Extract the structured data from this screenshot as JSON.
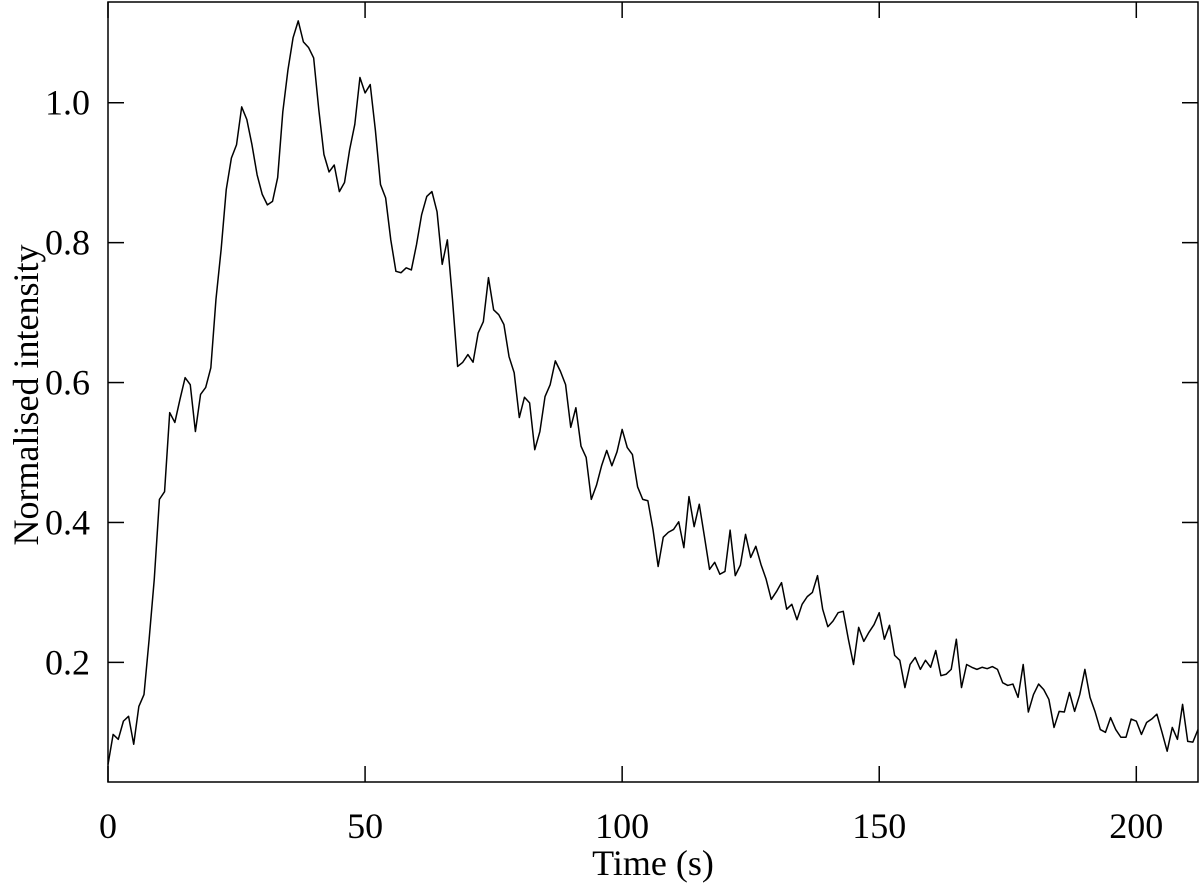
{
  "chart_data": {
    "type": "line",
    "x_label": "Time (s)",
    "y_label": "Normalised intensity",
    "x": [
      0,
      1,
      2,
      3,
      4,
      5,
      6,
      7,
      8,
      9,
      10,
      11,
      12,
      13,
      14,
      15,
      16,
      17,
      18,
      19,
      20,
      21,
      22,
      23,
      24,
      25,
      26,
      27,
      28,
      29,
      30,
      31,
      32,
      33,
      34,
      35,
      36,
      37,
      38,
      39,
      40,
      41,
      42,
      43,
      44,
      45,
      46,
      47,
      48,
      49,
      50,
      51,
      52,
      53,
      54,
      55,
      56,
      57,
      58,
      59,
      60,
      61,
      62,
      63,
      64,
      65,
      66,
      67,
      68,
      69,
      70,
      71,
      72,
      73,
      74,
      75,
      76,
      77,
      78,
      79,
      80,
      81,
      82,
      83,
      84,
      85,
      86,
      87,
      88,
      89,
      90,
      91,
      92,
      93,
      94,
      95,
      96,
      97,
      98,
      99,
      100,
      101,
      102,
      103,
      104,
      105,
      106,
      107,
      108,
      109,
      110,
      111,
      112,
      113,
      114,
      115,
      116,
      117,
      118,
      119,
      120,
      121,
      122,
      123,
      124,
      125,
      126,
      127,
      128,
      129,
      130,
      131,
      132,
      133,
      134,
      135,
      136,
      137,
      138,
      139,
      140,
      141,
      142,
      143,
      144,
      145,
      146,
      147,
      148,
      149,
      150,
      151,
      152,
      153,
      154,
      155,
      156,
      157,
      158,
      159,
      160,
      161,
      162,
      163,
      164,
      165,
      166,
      167,
      168,
      169,
      170,
      171,
      172,
      173,
      174,
      175,
      176,
      177,
      178,
      179,
      180,
      181,
      182,
      183,
      184,
      185,
      186,
      187,
      188,
      189,
      190,
      191,
      192,
      193,
      194,
      195,
      196,
      197,
      198,
      199,
      200,
      201,
      202,
      203,
      204,
      205,
      206,
      207,
      208,
      209,
      210,
      211,
      212
    ],
    "series": [
      {
        "color": "#000000",
        "values": [
          0.054,
          0.097,
          0.09,
          0.116,
          0.123,
          0.083,
          0.137,
          0.154,
          0.233,
          0.319,
          0.433,
          0.444,
          0.557,
          0.543,
          0.576,
          0.607,
          0.597,
          0.53,
          0.583,
          0.593,
          0.621,
          0.719,
          0.79,
          0.876,
          0.921,
          0.94,
          0.994,
          0.976,
          0.94,
          0.897,
          0.869,
          0.854,
          0.859,
          0.893,
          0.987,
          1.047,
          1.093,
          1.117,
          1.087,
          1.079,
          1.064,
          0.99,
          0.926,
          0.901,
          0.911,
          0.873,
          0.886,
          0.933,
          0.969,
          1.036,
          1.014,
          1.026,
          0.961,
          0.883,
          0.864,
          0.804,
          0.759,
          0.757,
          0.764,
          0.761,
          0.797,
          0.84,
          0.866,
          0.873,
          0.844,
          0.769,
          0.804,
          0.719,
          0.623,
          0.629,
          0.64,
          0.629,
          0.671,
          0.687,
          0.75,
          0.704,
          0.697,
          0.683,
          0.637,
          0.614,
          0.55,
          0.579,
          0.571,
          0.504,
          0.53,
          0.58,
          0.597,
          0.631,
          0.616,
          0.597,
          0.536,
          0.564,
          0.509,
          0.493,
          0.433,
          0.453,
          0.481,
          0.503,
          0.481,
          0.501,
          0.533,
          0.507,
          0.497,
          0.451,
          0.433,
          0.431,
          0.39,
          0.337,
          0.379,
          0.386,
          0.39,
          0.401,
          0.364,
          0.437,
          0.394,
          0.426,
          0.38,
          0.333,
          0.343,
          0.326,
          0.33,
          0.389,
          0.324,
          0.339,
          0.383,
          0.35,
          0.366,
          0.34,
          0.319,
          0.29,
          0.301,
          0.314,
          0.276,
          0.283,
          0.261,
          0.283,
          0.294,
          0.3,
          0.324,
          0.276,
          0.251,
          0.259,
          0.271,
          0.273,
          0.233,
          0.197,
          0.25,
          0.23,
          0.243,
          0.254,
          0.271,
          0.233,
          0.253,
          0.21,
          0.203,
          0.164,
          0.197,
          0.207,
          0.19,
          0.203,
          0.193,
          0.217,
          0.181,
          0.183,
          0.19,
          0.233,
          0.164,
          0.197,
          0.193,
          0.19,
          0.193,
          0.191,
          0.194,
          0.19,
          0.171,
          0.167,
          0.169,
          0.15,
          0.197,
          0.129,
          0.154,
          0.169,
          0.161,
          0.147,
          0.107,
          0.13,
          0.129,
          0.157,
          0.13,
          0.154,
          0.19,
          0.15,
          0.129,
          0.104,
          0.1,
          0.121,
          0.104,
          0.093,
          0.093,
          0.119,
          0.116,
          0.097,
          0.114,
          0.119,
          0.126,
          0.1,
          0.073,
          0.107,
          0.09,
          0.14,
          0.087,
          0.086,
          0.104
        ]
      }
    ],
    "xlim": [
      0,
      212
    ],
    "ylim": [
      0.029,
      1.144
    ],
    "xticks": [
      0,
      50,
      100,
      150,
      200
    ],
    "yticks": [
      0.2,
      0.4,
      0.6,
      0.8,
      {
        "value": 1,
        "label": "1.0"
      }
    ],
    "grid": false
  }
}
